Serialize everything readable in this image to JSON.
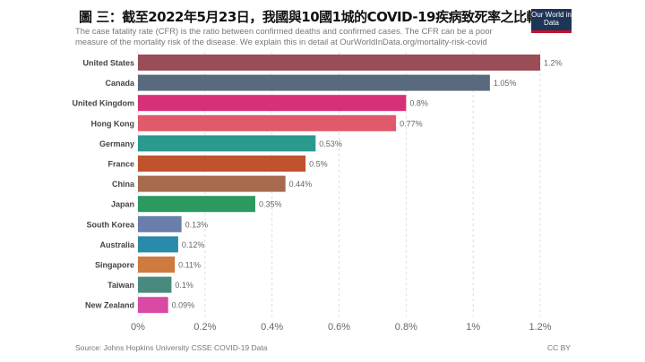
{
  "title": "圖 三：截至2022年5月23日，我國與10國1城的COVID-19疾病致死率之比較",
  "subtitle": "The case fatality rate (CFR) is the ratio between confirmed deaths and confirmed cases. The CFR can be a poor measure of the mortality risk of the disease. We explain this in detail at OurWorldInData.org/mortality-risk-covid",
  "logo": "Our World in Data",
  "source": "Source: Johns Hopkins University CSSE COVID-19 Data",
  "license": "CC BY",
  "chart_data": {
    "type": "bar",
    "orientation": "horizontal",
    "categories": [
      "United States",
      "Canada",
      "United Kingdom",
      "Hong Kong",
      "Germany",
      "France",
      "China",
      "Japan",
      "South Korea",
      "Australia",
      "Singapore",
      "Taiwan",
      "New Zealand"
    ],
    "values": [
      1.2,
      1.05,
      0.8,
      0.77,
      0.53,
      0.5,
      0.44,
      0.35,
      0.13,
      0.12,
      0.11,
      0.1,
      0.09
    ],
    "value_labels": [
      "1.2%",
      "1.05%",
      "0.8%",
      "0.77%",
      "0.53%",
      "0.5%",
      "0.44%",
      "0.35%",
      "0.13%",
      "0.12%",
      "0.11%",
      "0.1%",
      "0.09%"
    ],
    "colors": [
      "#9a4d56",
      "#5a6a7e",
      "#d63078",
      "#e05a6a",
      "#2a9a8e",
      "#c0522e",
      "#a86a4e",
      "#2a9a5e",
      "#6a7eaa",
      "#2a8aaa",
      "#cf7a3e",
      "#4a8a7e",
      "#d84aa4"
    ],
    "xlim": [
      0,
      1.2
    ],
    "xticks": [
      0,
      0.2,
      0.4,
      0.6,
      0.8,
      1,
      1.2
    ],
    "xtick_labels": [
      "0%",
      "0.2%",
      "0.4%",
      "0.6%",
      "0.8%",
      "1%",
      "1.2%"
    ],
    "grid": "vertical dashed"
  }
}
